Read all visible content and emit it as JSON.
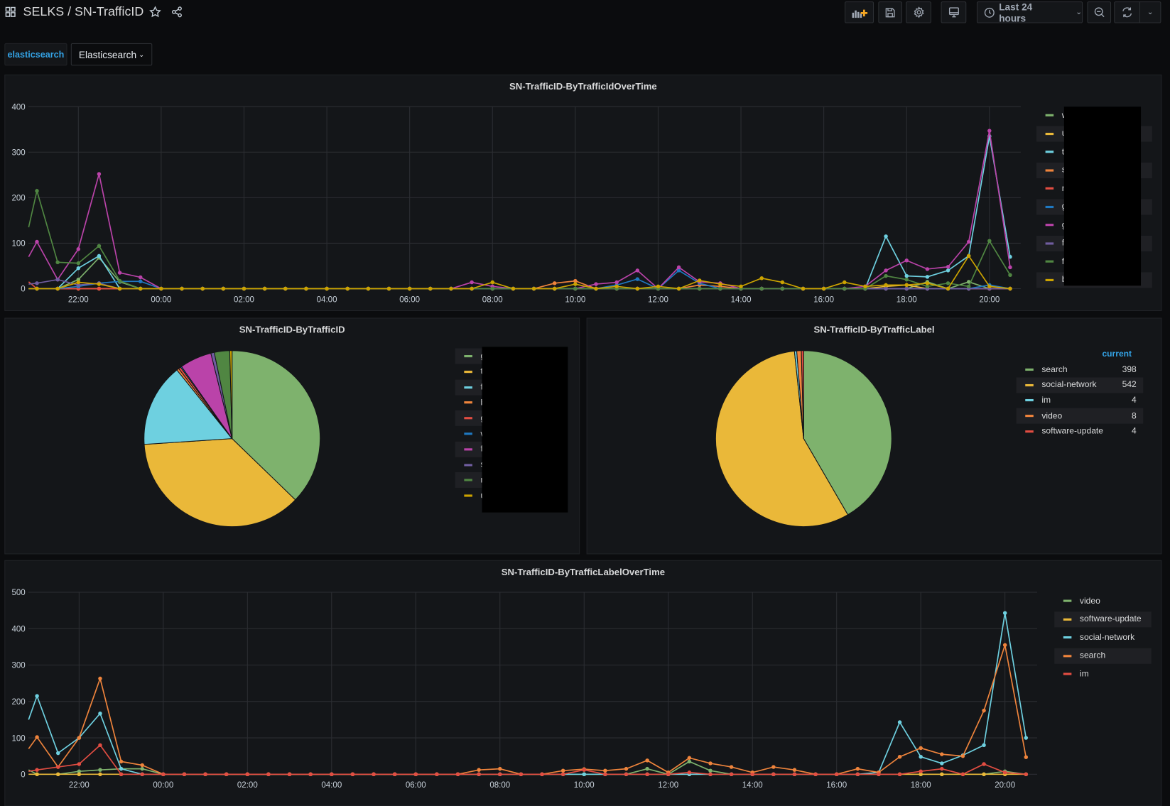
{
  "header": {
    "title": "SELKS / SN-TrafficID",
    "time_range": "Last 24 hours"
  },
  "variables": {
    "label": "elasticsearch",
    "value": "Elasticsearch"
  },
  "panels": {
    "traffic_over_time": {
      "title": "SN-TrafficID-ByTrafficIdOverTime"
    },
    "by_traffic_id": {
      "title": "SN-TrafficID-ByTrafficID"
    },
    "by_traffic_label": {
      "title": "SN-TrafficID-ByTrafficLabel",
      "legend_header": "current"
    },
    "label_over_time": {
      "title": "SN-TrafficID-ByTrafficLabelOverTime"
    }
  },
  "times": [
    "20:48",
    "21:00",
    "21:30",
    "22:00",
    "22:30",
    "23:00",
    "23:30",
    "00:00",
    "00:30",
    "01:00",
    "01:30",
    "02:00",
    "02:30",
    "03:00",
    "03:30",
    "04:00",
    "04:30",
    "05:00",
    "05:30",
    "06:00",
    "06:30",
    "07:00",
    "07:30",
    "08:00",
    "08:30",
    "09:00",
    "09:30",
    "10:00",
    "10:30",
    "11:00",
    "11:30",
    "12:00",
    "12:30",
    "13:00",
    "13:30",
    "14:00",
    "14:30",
    "15:00",
    "15:30",
    "16:00",
    "16:30",
    "17:00",
    "17:30",
    "18:00",
    "18:30",
    "19:00",
    "19:30",
    "20:00",
    "20:30"
  ],
  "chart_data": [
    {
      "type": "line",
      "title": "SN-TrafficID-ByTrafficIdOverTime",
      "ylim": [
        0,
        400
      ],
      "yticks": [
        0,
        100,
        200,
        300,
        400
      ],
      "xticks": [
        "22:00",
        "00:00",
        "02:00",
        "04:00",
        "06:00",
        "08:00",
        "10:00",
        "12:00",
        "14:00",
        "16:00",
        "18:00",
        "20:00"
      ],
      "note": "values not listed are 0",
      "series": [
        {
          "name": "w",
          "color": "#7EB26D",
          "values": {
            "22:00": 20,
            "22:30": 68,
            "23:00": 15,
            "18:30": 15,
            "19:30": 15
          }
        },
        {
          "name": "u",
          "color": "#EAB839",
          "values": {
            "17:30": 5,
            "18:00": 8
          }
        },
        {
          "name": "tw",
          "color": "#6ED0E0",
          "values": {
            "22:00": 45,
            "22:30": 72,
            "17:30": 115,
            "18:00": 28,
            "18:30": 26,
            "19:00": 40,
            "19:30": 72,
            "20:00": 335,
            "20:30": 70
          }
        },
        {
          "name": "s",
          "color": "#EF843C",
          "values": {
            "09:30": 12,
            "10:00": 17,
            "13:00": 8,
            "13:30": 5
          }
        },
        {
          "name": "n",
          "color": "#E24D42",
          "values": {
            "20:48": 15
          }
        },
        {
          "name": "g",
          "color": "#1F78C1",
          "values": {
            "22:00": 5,
            "22:30": 12,
            "23:00": 16,
            "23:30": 16,
            "11:00": 8,
            "11:30": 21,
            "12:30": 40,
            "13:00": 12,
            "20:00": 8
          }
        },
        {
          "name": "g",
          "color": "#BA43A9",
          "values": {
            "20:48": 70,
            "21:00": 103,
            "21:30": 20,
            "22:00": 87,
            "22:30": 252,
            "23:00": 35,
            "23:30": 25,
            "07:30": 14,
            "08:00": 5,
            "10:30": 10,
            "11:00": 14,
            "11:30": 40,
            "12:30": 47,
            "13:00": 15,
            "13:30": 12,
            "17:00": 5,
            "17:30": 40,
            "18:00": 62,
            "18:30": 43,
            "19:00": 48,
            "19:30": 103,
            "20:00": 347,
            "20:30": 47
          }
        },
        {
          "name": "fa",
          "color": "#705DA0",
          "values": {
            "20:48": 10,
            "21:00": 12,
            "21:30": 20,
            "22:00": 8,
            "22:30": 12
          }
        },
        {
          "name": "fa",
          "color": "#508642",
          "values": {
            "20:48": 135,
            "21:00": 215,
            "21:30": 58,
            "22:00": 56,
            "22:30": 94,
            "23:00": 17,
            "17:30": 28,
            "18:00": 20,
            "18:30": 5,
            "19:00": 12,
            "19:30": 5,
            "20:00": 105,
            "20:30": 30
          }
        },
        {
          "name": "b",
          "color": "#CCA300",
          "values": {
            "22:00": 14,
            "22:30": 10,
            "08:00": 14,
            "10:00": 10,
            "11:00": 5,
            "12:00": 5,
            "13:00": 18,
            "13:30": 10,
            "14:00": 5,
            "14:30": 23,
            "15:00": 14,
            "16:30": 14,
            "17:00": 5,
            "17:30": 8,
            "18:00": 8,
            "18:30": 12,
            "19:30": 72,
            "20:00": 5
          }
        }
      ]
    },
    {
      "type": "pie",
      "title": "SN-TrafficID-ByTrafficID",
      "legend": "right",
      "slices": [
        {
          "name": "g",
          "color": "#7EB26D",
          "value": 356
        },
        {
          "name": "t",
          "color": "#EAB839",
          "value": 351
        },
        {
          "name": "f",
          "color": "#6ED0E0",
          "value": 146
        },
        {
          "name": "b",
          "color": "#EF843C",
          "value": 4
        },
        {
          "name": "g",
          "color": "#E24D42",
          "value": 4
        },
        {
          "name": "w",
          "color": "#1F78C1",
          "value": 2
        },
        {
          "name": "f",
          "color": "#BA43A9",
          "value": 56
        },
        {
          "name": "s",
          "color": "#705DA0",
          "value": 6
        },
        {
          "name": "n",
          "color": "#508642",
          "value": 27
        },
        {
          "name": "u",
          "color": "#CCA300",
          "value": 4
        }
      ]
    },
    {
      "type": "pie",
      "title": "SN-TrafficID-ByTrafficLabel",
      "legend": "right",
      "slices": [
        {
          "name": "search",
          "color": "#7EB26D",
          "value": 398
        },
        {
          "name": "social-network",
          "color": "#EAB839",
          "value": 542
        },
        {
          "name": "im",
          "color": "#6ED0E0",
          "value": 4
        },
        {
          "name": "video",
          "color": "#EF843C",
          "value": 8
        },
        {
          "name": "software-update",
          "color": "#E24D42",
          "value": 4
        }
      ]
    },
    {
      "type": "line",
      "title": "SN-TrafficID-ByTrafficLabelOverTime",
      "ylim": [
        0,
        500
      ],
      "yticks": [
        0,
        100,
        200,
        300,
        400,
        500
      ],
      "xticks": [
        "22:00",
        "00:00",
        "02:00",
        "04:00",
        "06:00",
        "08:00",
        "10:00",
        "12:00",
        "14:00",
        "16:00",
        "18:00",
        "20:00"
      ],
      "note": "values not listed are 0",
      "series": [
        {
          "name": "video",
          "color": "#7EB26D",
          "values": {
            "20:48": 12,
            "22:00": 8,
            "22:30": 12,
            "23:00": 15,
            "23:30": 15,
            "11:30": 15,
            "12:30": 35,
            "13:00": 10,
            "20:00": 8
          }
        },
        {
          "name": "software-update",
          "color": "#EAB839",
          "values": {}
        },
        {
          "name": "social-network",
          "color": "#6ED0E0",
          "values": {
            "20:48": 150,
            "21:00": 215,
            "21:30": 58,
            "22:00": 100,
            "22:30": 167,
            "23:00": 15,
            "17:00": 5,
            "17:30": 143,
            "18:00": 48,
            "18:30": 30,
            "19:00": 52,
            "19:30": 80,
            "20:00": 443,
            "20:30": 100
          }
        },
        {
          "name": "search",
          "color": "#EF843C",
          "values": {
            "20:48": 70,
            "21:00": 102,
            "21:30": 20,
            "22:00": 100,
            "22:30": 263,
            "23:00": 35,
            "23:30": 25,
            "07:30": 12,
            "08:00": 15,
            "09:30": 10,
            "10:00": 14,
            "10:30": 10,
            "11:00": 15,
            "11:30": 38,
            "12:00": 5,
            "12:30": 45,
            "13:00": 30,
            "13:30": 20,
            "14:00": 5,
            "14:30": 20,
            "15:00": 12,
            "16:30": 15,
            "17:00": 5,
            "17:30": 48,
            "18:00": 72,
            "18:30": 55,
            "19:00": 50,
            "19:30": 175,
            "20:00": 355,
            "20:30": 47
          }
        },
        {
          "name": "im",
          "color": "#E24D42",
          "values": {
            "20:48": 8,
            "21:00": 12,
            "21:30": 20,
            "22:00": 28,
            "22:30": 80,
            "10:00": 12,
            "12:30": 5,
            "18:00": 8,
            "18:30": 15,
            "19:30": 28,
            "20:00": 5
          }
        }
      ]
    }
  ]
}
